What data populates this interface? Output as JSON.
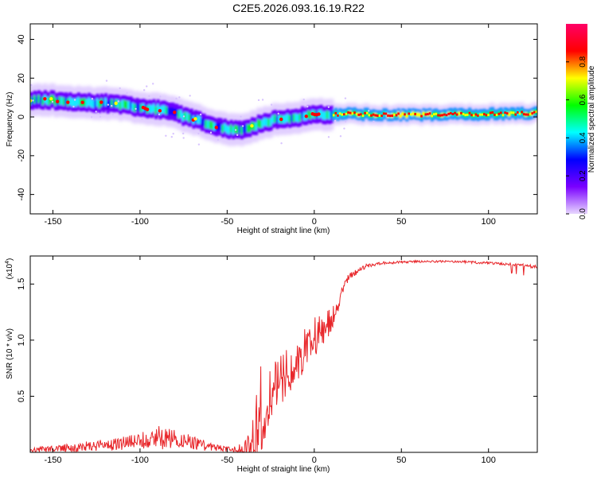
{
  "title": "C2E5.2026.093.16.19.R22",
  "chart_data": [
    {
      "type": "heatmap",
      "xlabel": "Height of straight line (km)",
      "ylabel": "Frequency (Hz)",
      "xlim": [
        -163,
        128
      ],
      "ylim": [
        -50,
        48
      ],
      "x_ticks": [
        -150,
        -100,
        -50,
        0,
        50,
        100
      ],
      "y_ticks": [
        -40,
        -20,
        0,
        20,
        40
      ],
      "ridge_x": [
        -163,
        -150,
        -140,
        -130,
        -120,
        -110,
        -100,
        -90,
        -80,
        -70,
        -60,
        -55,
        -50,
        -45,
        -40,
        -35,
        -30,
        -25,
        -20,
        -10,
        0,
        10,
        20,
        40,
        60,
        80,
        100,
        128
      ],
      "ridge_y": [
        9,
        8.5,
        8,
        7.5,
        7,
        6,
        5,
        4,
        2,
        -1,
        -4,
        -5,
        -6,
        -7,
        -7,
        -5,
        -3,
        -2,
        -1,
        0,
        1,
        1.5,
        1.5,
        1,
        1,
        1.2,
        1.5,
        2
      ],
      "colorbar": {
        "label": "Normalized spectral amplitude",
        "range": [
          0,
          1
        ],
        "ticks": [
          0.0,
          0.2,
          0.4,
          0.6,
          0.8
        ],
        "colors": [
          "#e8d8ff",
          "#7a00ff",
          "#0000ff",
          "#00ffff",
          "#00ff00",
          "#ffff00",
          "#ff0000",
          "#ff0066"
        ]
      },
      "grid": false
    },
    {
      "type": "line",
      "xlabel": "Height of straight line (km)",
      "ylabel": "SNR (10 * v/v)",
      "y_multiplier": "(x10",
      "y_multiplier_exp": "4",
      "y_multiplier_close": ")",
      "xlim": [
        -163,
        128
      ],
      "ylim": [
        0,
        1.75
      ],
      "x_ticks": [
        -150,
        -100,
        -50,
        0,
        50,
        100
      ],
      "y_ticks": [
        0.5,
        1.0,
        1.5
      ],
      "y_tick_labels": [
        "0.5",
        "1.0",
        "1.5"
      ],
      "series": [
        {
          "color": "#e8262a",
          "envelope_x": [
            -163,
            -150,
            -130,
            -110,
            -100,
            -90,
            -80,
            -70,
            -60,
            -50,
            -40,
            -36,
            -33,
            -30,
            -27,
            -24,
            -20,
            -15,
            -10,
            -5,
            0,
            5,
            10,
            15,
            20,
            30,
            40,
            60,
            80,
            100,
            120,
            128
          ],
          "envelope_y": [
            0.04,
            0.06,
            0.1,
            0.14,
            0.17,
            0.24,
            0.2,
            0.15,
            0.09,
            0.05,
            0.08,
            0.3,
            0.75,
            0.9,
            0.75,
            0.85,
            0.95,
            1.0,
            1.05,
            1.15,
            1.2,
            1.25,
            1.3,
            1.45,
            1.6,
            1.68,
            1.7,
            1.71,
            1.71,
            1.7,
            1.68,
            1.67
          ],
          "spread_y": [
            0.04,
            0.05,
            0.08,
            0.1,
            0.12,
            0.18,
            0.15,
            0.1,
            0.07,
            0.04,
            0.1,
            0.35,
            0.55,
            0.55,
            0.45,
            0.4,
            0.35,
            0.3,
            0.28,
            0.25,
            0.22,
            0.18,
            0.15,
            0.08,
            0.05,
            0.03,
            0.02,
            0.015,
            0.015,
            0.02,
            0.02,
            0.03
          ]
        }
      ],
      "grid": false
    }
  ]
}
